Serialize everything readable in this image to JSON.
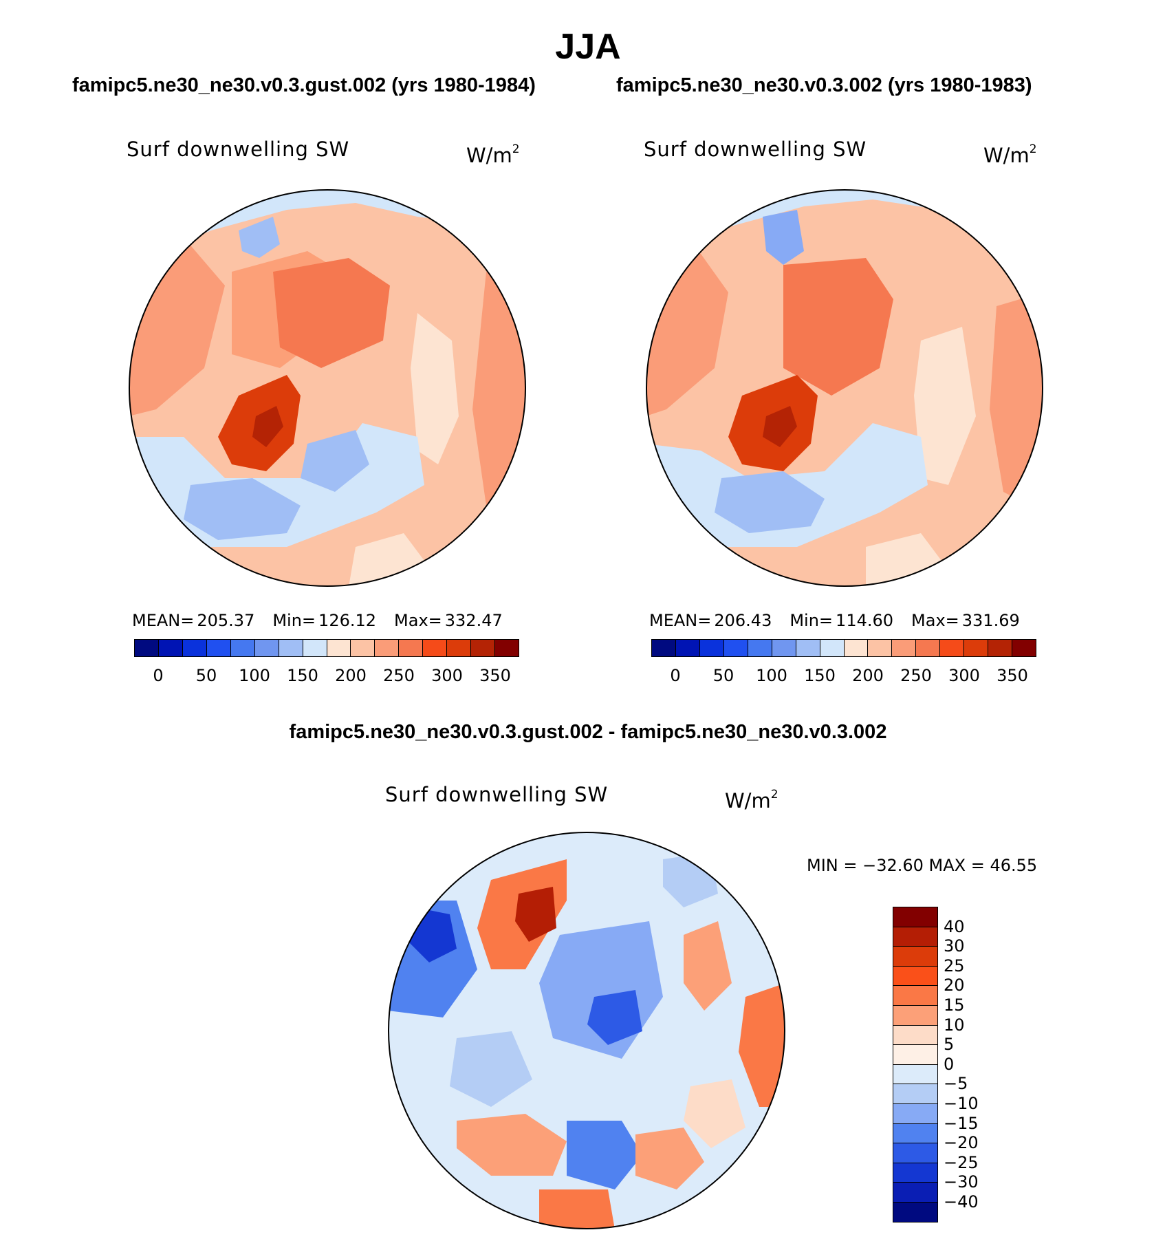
{
  "title": "JJA",
  "panels": [
    {
      "case_title": "famipc5.ne30_ne30.v0.3.gust.002 (yrs 1980-1984)",
      "variable": "Surf downwelling SW",
      "units_base": "W/m",
      "units_exp": "2",
      "mean_label": "MEAN=",
      "mean_value": "205.37",
      "min_label": "Min=",
      "min_value": "126.12",
      "max_label": "Max=",
      "max_value": "332.47"
    },
    {
      "case_title": "famipc5.ne30_ne30.v0.3.002 (yrs 1980-1983)",
      "variable": "Surf downwelling SW",
      "units_base": "W/m",
      "units_exp": "2",
      "mean_label": "MEAN=",
      "mean_value": "206.43",
      "min_label": "Min=",
      "min_value": "114.60",
      "max_label": "Max=",
      "max_value": "331.69"
    }
  ],
  "diff_panel": {
    "case_title": "famipc5.ne30_ne30.v0.3.gust.002 - famipc5.ne30_ne30.v0.3.002",
    "variable": "Surf downwelling SW",
    "units_base": "W/m",
    "units_exp": "2",
    "minmax_text": "MIN = −32.60 MAX =  46.55"
  },
  "abs_colorbar": {
    "colors": [
      "#000a80",
      "#0014b4",
      "#0a32dc",
      "#2050f0",
      "#4578f0",
      "#7096f0",
      "#a0bef5",
      "#d2e6fa",
      "#fde4d2",
      "#fcc3a5",
      "#fa9c78",
      "#f57850",
      "#f54b19",
      "#dc3c0a",
      "#b42305",
      "#820000"
    ],
    "ticks": [
      "0",
      "50",
      "100",
      "150",
      "200",
      "250",
      "300",
      "350"
    ]
  },
  "diff_colorbar": {
    "colors": [
      "#820000",
      "#b41e05",
      "#dc3c0a",
      "#fa5019",
      "#fa7846",
      "#fca078",
      "#fddcc8",
      "#fef0e6",
      "#dcebfa",
      "#b4cdf5",
      "#87aaf5",
      "#5082f0",
      "#2d5ae6",
      "#1437d2",
      "#0a1eb4",
      "#000a80"
    ],
    "ticks": [
      "40",
      "30",
      "25",
      "20",
      "15",
      "10",
      "5",
      "0",
      "−5",
      "−10",
      "−15",
      "−20",
      "−25",
      "−30",
      "−40"
    ]
  }
}
